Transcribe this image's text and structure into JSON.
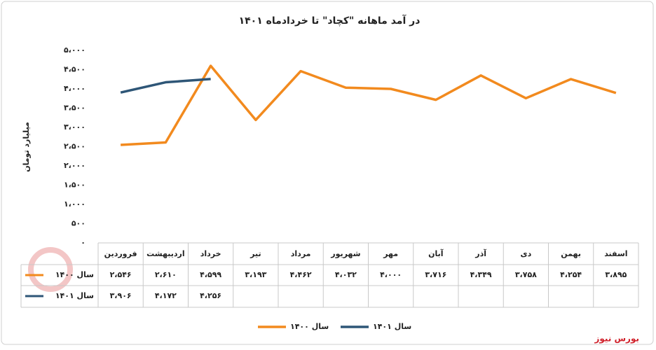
{
  "chart_data": {
    "type": "line",
    "title": "در آمد ماهانه \"کچاد\" تا خردادماه ۱۴۰۱",
    "y_label": "میلیارد تومان",
    "source": "بورس نیوز",
    "categories": [
      "فروردین",
      "اردیبهشت",
      "خرداد",
      "تیر",
      "مرداد",
      "شهریور",
      "مهر",
      "آبان",
      "آذر",
      "دی",
      "بهمن",
      "اسفند"
    ],
    "series": [
      {
        "name": "سال ۱۴۰۰",
        "color": "#f28a1e",
        "values": [
          2546,
          2610,
          4599,
          3193,
          4462,
          4032,
          4000,
          3716,
          4349,
          3758,
          4254,
          3895
        ],
        "value_labels": [
          "۲،۵۴۶",
          "۲،۶۱۰",
          "۴،۵۹۹",
          "۳،۱۹۳",
          "۴،۴۶۲",
          "۴،۰۳۲",
          "۴،۰۰۰",
          "۳،۷۱۶",
          "۴،۳۴۹",
          "۳،۷۵۸",
          "۴،۲۵۴",
          "۳،۸۹۵"
        ]
      },
      {
        "name": "سال ۱۴۰۱",
        "color": "#2e5677",
        "values": [
          3906,
          4172,
          4256,
          null,
          null,
          null,
          null,
          null,
          null,
          null,
          null,
          null
        ],
        "value_labels": [
          "۳،۹۰۶",
          "۴،۱۷۲",
          "۴،۲۵۶",
          null,
          null,
          null,
          null,
          null,
          null,
          null,
          null,
          null
        ]
      }
    ],
    "ylim": [
      0,
      5000
    ],
    "yticks": [
      {
        "value": 0,
        "label": "۰"
      },
      {
        "value": 500,
        "label": "۵۰۰"
      },
      {
        "value": 1000,
        "label": "۱،۰۰۰"
      },
      {
        "value": 1500,
        "label": "۱،۵۰۰"
      },
      {
        "value": 2000,
        "label": "۲،۰۰۰"
      },
      {
        "value": 2500,
        "label": "۲،۵۰۰"
      },
      {
        "value": 3000,
        "label": "۳،۰۰۰"
      },
      {
        "value": 3500,
        "label": "۳،۵۰۰"
      },
      {
        "value": 4000,
        "label": "۴،۰۰۰"
      },
      {
        "value": 4500,
        "label": "۴،۵۰۰"
      },
      {
        "value": 5000,
        "label": "۵،۰۰۰"
      }
    ],
    "grid": false
  }
}
